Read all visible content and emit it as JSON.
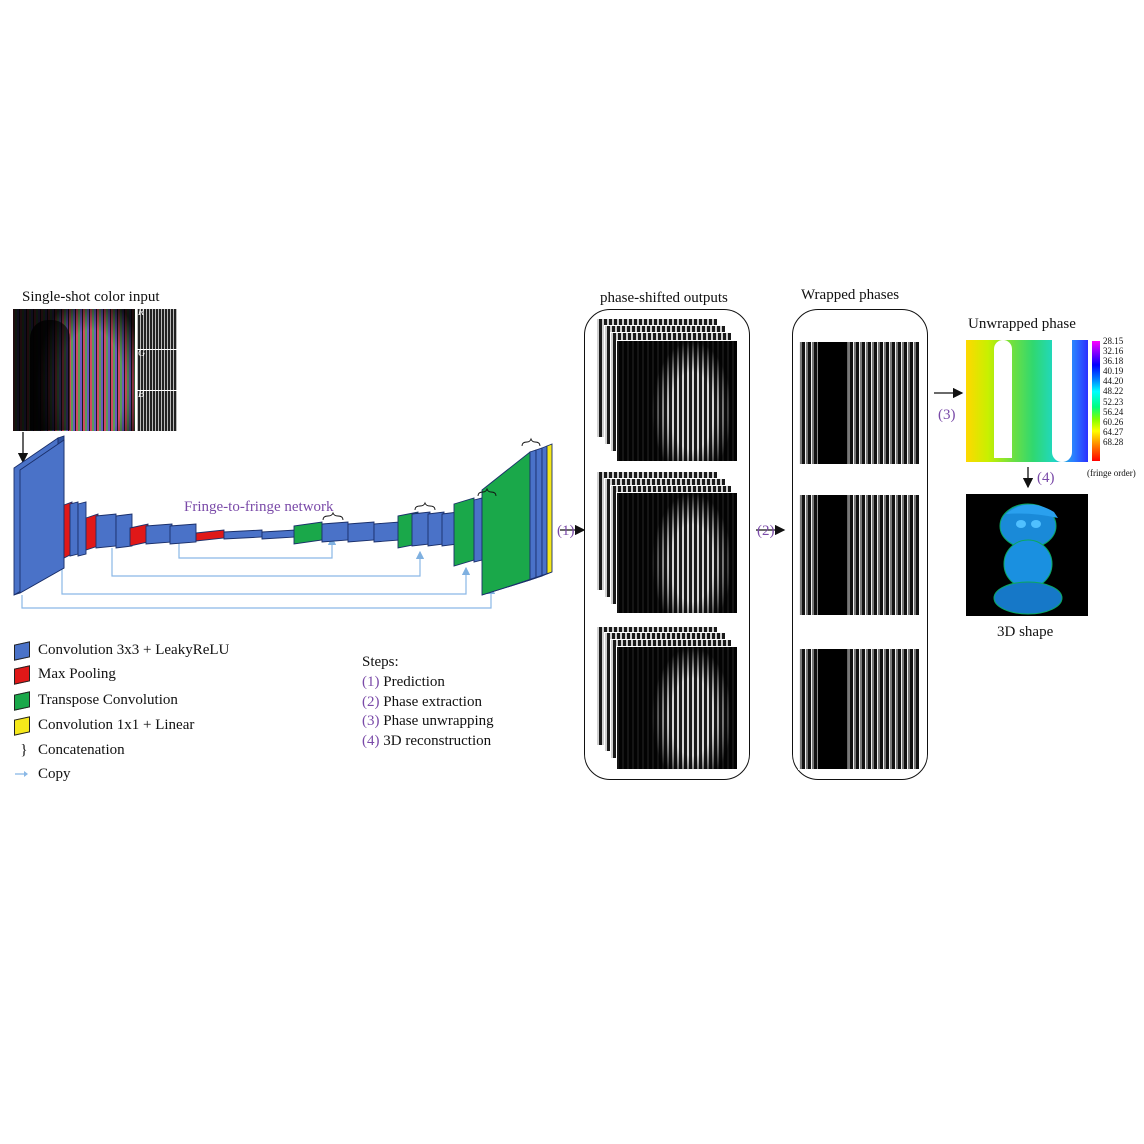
{
  "input": {
    "title": "Single-shot color input",
    "channels": [
      "R",
      "G",
      "B"
    ]
  },
  "network": {
    "title": "Fringe-to-fringe network",
    "step_prediction": "(1)",
    "step_extraction": "(2)",
    "step_unwrapping": "(3)",
    "step_reconstruction": "(4)"
  },
  "panels": {
    "phase_shifted_title": "phase-shifted outputs",
    "wrapped_title": "Wrapped phases",
    "unwrapped_title": "Unwrapped phase",
    "shape_title": "3D shape"
  },
  "colorbar": {
    "ticks": [
      "28.15",
      "32.16",
      "36.18",
      "40.19",
      "44.20",
      "48.22",
      "52.23",
      "56.24",
      "60.26",
      "64.27",
      "68.28"
    ],
    "unit": "(fringe order)"
  },
  "legend": {
    "items": [
      {
        "label": "Convolution 3x3 + LeakyReLU",
        "color": "#4a72c8"
      },
      {
        "label": "Max Pooling",
        "color": "#e01818"
      },
      {
        "label": "Transpose Convolution",
        "color": "#1aa84a"
      },
      {
        "label": "Convolution 1x1 + Linear",
        "color": "#f5e81a"
      },
      {
        "label": "Concatenation",
        "symbol": "}"
      },
      {
        "label": "Copy",
        "symbol": "arrow"
      }
    ]
  },
  "steps": {
    "heading": "Steps:",
    "items": [
      {
        "num": "(1)",
        "text": " Prediction"
      },
      {
        "num": "(2)",
        "text": " Phase extraction"
      },
      {
        "num": "(3)",
        "text": " Phase unwrapping"
      },
      {
        "num": "(4)",
        "text": " 3D reconstruction"
      }
    ]
  }
}
